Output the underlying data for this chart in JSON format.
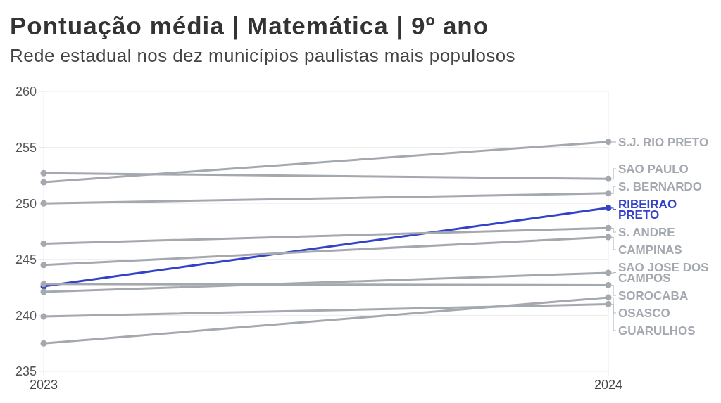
{
  "chart_data": {
    "type": "line",
    "title": "Pontuação média | Matemática | 9º ano",
    "subtitle": "Rede estadual nos dez municípios paulistas mais populosos",
    "categories": [
      "2023",
      "2024"
    ],
    "series": [
      {
        "name": "S.J. RIO PRETO",
        "color": "#a4a8af",
        "values": [
          251.9,
          255.5
        ]
      },
      {
        "name": "SAO PAULO",
        "color": "#a4a8af",
        "values": [
          252.7,
          252.2
        ]
      },
      {
        "name": "S. BERNARDO",
        "color": "#a4a8af",
        "values": [
          250.0,
          250.9
        ]
      },
      {
        "name": "RIBEIRAO PRETO",
        "color": "#3342c8",
        "values": [
          242.6,
          249.6
        ]
      },
      {
        "name": "S. ANDRE",
        "color": "#a4a8af",
        "values": [
          246.4,
          247.8
        ]
      },
      {
        "name": "CAMPINAS",
        "color": "#a4a8af",
        "values": [
          244.5,
          247.0
        ]
      },
      {
        "name": "SAO JOSE DOS CAMPOS",
        "color": "#a4a8af",
        "values": [
          242.1,
          243.8
        ]
      },
      {
        "name": "SOROCABA",
        "color": "#a4a8af",
        "values": [
          242.8,
          242.7
        ]
      },
      {
        "name": "OSASCO",
        "color": "#a4a8af",
        "values": [
          237.5,
          241.6
        ]
      },
      {
        "name": "GUARULHOS",
        "color": "#a4a8af",
        "values": [
          239.9,
          241.0
        ]
      }
    ],
    "ylim": [
      235,
      260
    ],
    "yticks": [
      235,
      240,
      245,
      250,
      255,
      260
    ],
    "grid": true,
    "legend": "right",
    "marker": "circle",
    "line_style": "solid"
  }
}
